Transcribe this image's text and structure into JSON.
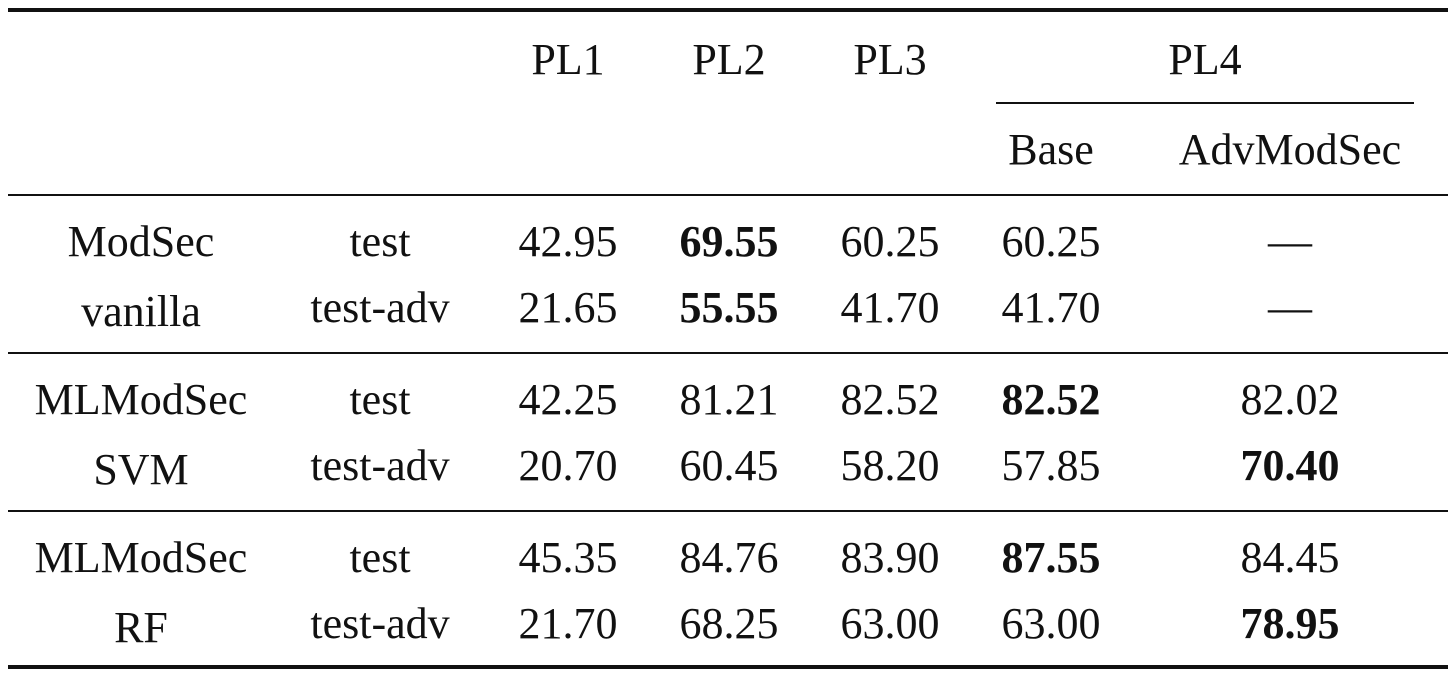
{
  "header": {
    "columns": [
      "PL1",
      "PL2",
      "PL3",
      "PL4"
    ],
    "pl4_subcolumns": [
      "Base",
      "AdvModSec"
    ]
  },
  "groups": [
    {
      "model_line1": "ModSec",
      "model_line2": "vanilla",
      "rows": [
        {
          "split": "test",
          "values": [
            "42.95",
            "69.55",
            "60.25",
            "60.25",
            "—"
          ],
          "bold": [
            false,
            true,
            false,
            false,
            false
          ]
        },
        {
          "split": "test-adv",
          "values": [
            "21.65",
            "55.55",
            "41.70",
            "41.70",
            "—"
          ],
          "bold": [
            false,
            true,
            false,
            false,
            false
          ]
        }
      ]
    },
    {
      "model_line1": "MLModSec",
      "model_line2": "SVM",
      "rows": [
        {
          "split": "test",
          "values": [
            "42.25",
            "81.21",
            "82.52",
            "82.52",
            "82.02"
          ],
          "bold": [
            false,
            false,
            false,
            true,
            false
          ]
        },
        {
          "split": "test-adv",
          "values": [
            "20.70",
            "60.45",
            "58.20",
            "57.85",
            "70.40"
          ],
          "bold": [
            false,
            false,
            false,
            false,
            true
          ]
        }
      ]
    },
    {
      "model_line1": "MLModSec",
      "model_line2": "RF",
      "rows": [
        {
          "split": "test",
          "values": [
            "45.35",
            "84.76",
            "83.90",
            "87.55",
            "84.45"
          ],
          "bold": [
            false,
            false,
            false,
            true,
            false
          ]
        },
        {
          "split": "test-adv",
          "values": [
            "21.70",
            "68.25",
            "63.00",
            "63.00",
            "78.95"
          ],
          "bold": [
            false,
            false,
            false,
            false,
            true
          ]
        }
      ]
    }
  ]
}
